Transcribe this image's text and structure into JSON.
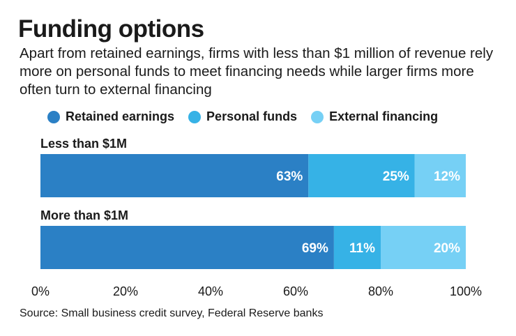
{
  "chart_data": {
    "type": "bar",
    "orientation": "horizontal-stacked-100",
    "title": "Funding options",
    "subtitle": "Apart from retained earnings, firms with less than $1 million of revenue rely more on personal funds to meet financing needs while larger firms more often turn to external financing",
    "categories": [
      "Less than $1M",
      "More than $1M"
    ],
    "series": [
      {
        "name": "Retained earnings",
        "color": "#2b80c5",
        "values": [
          63,
          69
        ]
      },
      {
        "name": "Personal funds",
        "color": "#36b2e6",
        "values": [
          25,
          11
        ]
      },
      {
        "name": "External financing",
        "color": "#76d0f5",
        "values": [
          12,
          20
        ]
      }
    ],
    "xlim": [
      0,
      100
    ],
    "xticks": [
      "0%",
      "20%",
      "40%",
      "60%",
      "80%",
      "100%"
    ],
    "legend_position": "top",
    "grid": false,
    "source": "Source: Small business credit survey, Federal Reserve banks"
  }
}
